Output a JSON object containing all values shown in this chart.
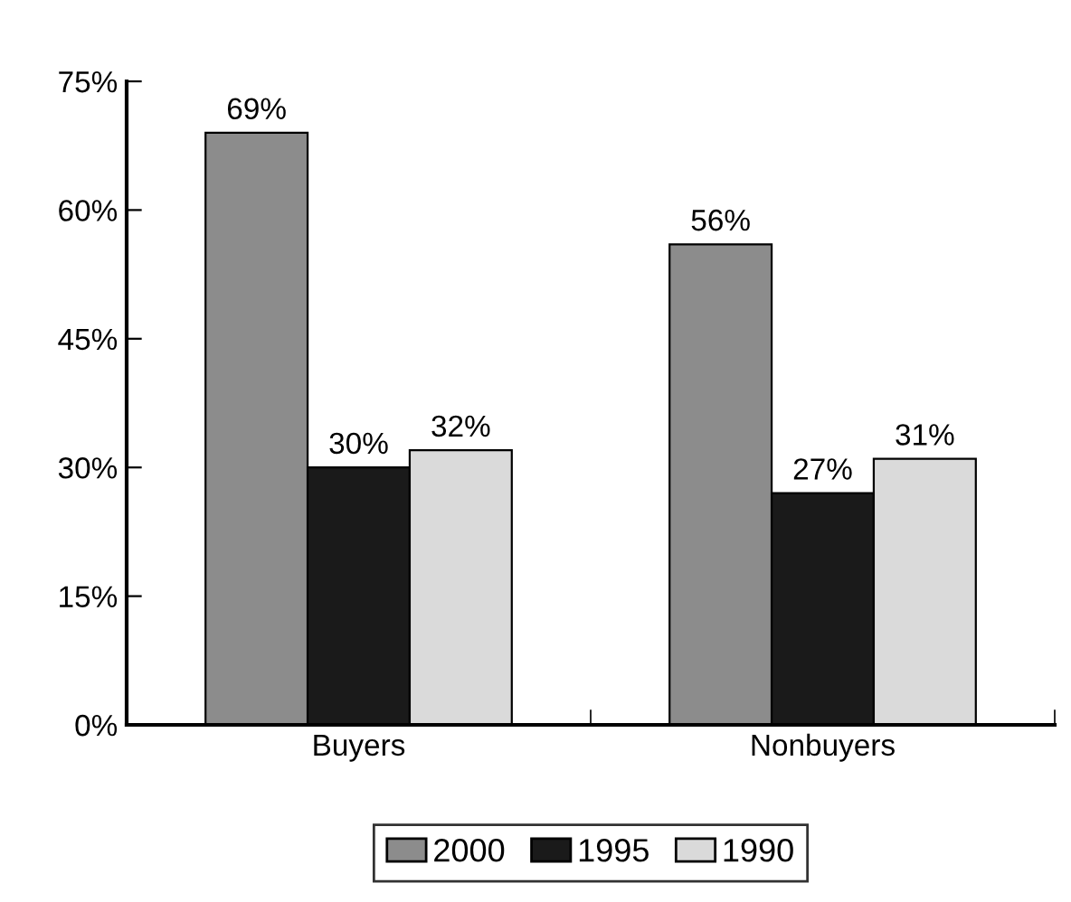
{
  "chart_data": {
    "type": "bar",
    "categories": [
      "Buyers",
      "Nonbuyers"
    ],
    "series": [
      {
        "name": "2000",
        "color": "#8c8c8c",
        "values": [
          69,
          56
        ],
        "value_labels": [
          "69%",
          "56%"
        ]
      },
      {
        "name": "1995",
        "color": "#1a1a1a",
        "values": [
          30,
          27
        ],
        "value_labels": [
          "30%",
          "27%"
        ]
      },
      {
        "name": "1990",
        "color": "#dadada",
        "values": [
          32,
          31
        ],
        "value_labels": [
          "32%",
          "31%"
        ]
      }
    ],
    "ylim": [
      0,
      75
    ],
    "yticks": [
      {
        "value": 0,
        "label": "0%"
      },
      {
        "value": 15,
        "label": "15%"
      },
      {
        "value": 30,
        "label": "30%"
      },
      {
        "value": 45,
        "label": "45%"
      },
      {
        "value": 60,
        "label": "60%"
      },
      {
        "value": 75,
        "label": "75%"
      }
    ],
    "grid": false,
    "legend": "bottom"
  }
}
